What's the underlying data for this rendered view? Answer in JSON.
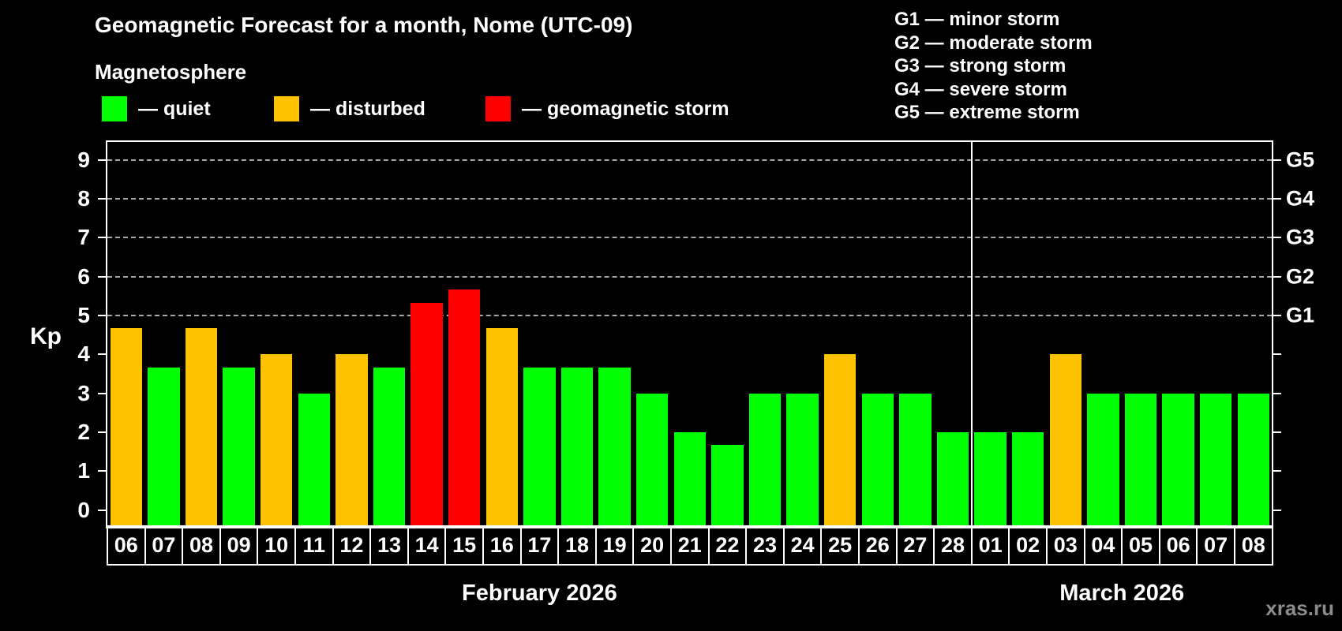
{
  "header": {
    "title": "Geomagnetic Forecast for a month, Nome (UTC-09)",
    "subtitle": "Magnetosphere",
    "legend": [
      {
        "key": "quiet",
        "label": "— quiet",
        "color": "#00ff00"
      },
      {
        "key": "disturbed",
        "label": "— disturbed",
        "color": "#ffc200"
      },
      {
        "key": "storm",
        "label": "— geomagnetic storm",
        "color": "#ff0000"
      }
    ],
    "g_scale_legend": [
      "G1 — minor storm",
      "G2 — moderate storm",
      "G3 — strong storm",
      "G4 — severe storm",
      "G5 — extreme storm"
    ]
  },
  "watermark": "xras.ru",
  "chart_data": {
    "type": "bar",
    "title": "Geomagnetic Forecast for a month, Nome (UTC-09)",
    "ylabel": "Kp",
    "ylim": [
      0,
      9.5
    ],
    "y_ticks": [
      0,
      1,
      2,
      3,
      4,
      5,
      6,
      7,
      8,
      9
    ],
    "grid": "dashed horizontal lines at storm levels only",
    "grid_kp_levels": [
      5,
      6,
      7,
      8,
      9
    ],
    "right_axis_labels": [
      {
        "label": "G1",
        "kp": 5
      },
      {
        "label": "G2",
        "kp": 6
      },
      {
        "label": "G3",
        "kp": 7
      },
      {
        "label": "G4",
        "kp": 8
      },
      {
        "label": "G5",
        "kp": 9
      }
    ],
    "status_colors": {
      "quiet": "#00ff00",
      "disturbed": "#ffc200",
      "storm": "#ff0000"
    },
    "months": [
      {
        "label": "February 2026",
        "bars": [
          {
            "day": "06",
            "kp": 4.67,
            "status": "disturbed"
          },
          {
            "day": "07",
            "kp": 3.67,
            "status": "quiet"
          },
          {
            "day": "08",
            "kp": 4.67,
            "status": "disturbed"
          },
          {
            "day": "09",
            "kp": 3.67,
            "status": "quiet"
          },
          {
            "day": "10",
            "kp": 4.0,
            "status": "disturbed"
          },
          {
            "day": "11",
            "kp": 3.0,
            "status": "quiet"
          },
          {
            "day": "12",
            "kp": 4.0,
            "status": "disturbed"
          },
          {
            "day": "13",
            "kp": 3.67,
            "status": "quiet"
          },
          {
            "day": "14",
            "kp": 5.33,
            "status": "storm"
          },
          {
            "day": "15",
            "kp": 5.67,
            "status": "storm"
          },
          {
            "day": "16",
            "kp": 4.67,
            "status": "disturbed"
          },
          {
            "day": "17",
            "kp": 3.67,
            "status": "quiet"
          },
          {
            "day": "18",
            "kp": 3.67,
            "status": "quiet"
          },
          {
            "day": "19",
            "kp": 3.67,
            "status": "quiet"
          },
          {
            "day": "20",
            "kp": 3.0,
            "status": "quiet"
          },
          {
            "day": "21",
            "kp": 2.0,
            "status": "quiet"
          },
          {
            "day": "22",
            "kp": 1.67,
            "status": "quiet"
          },
          {
            "day": "23",
            "kp": 3.0,
            "status": "quiet"
          },
          {
            "day": "24",
            "kp": 3.0,
            "status": "quiet"
          },
          {
            "day": "25",
            "kp": 4.0,
            "status": "disturbed"
          },
          {
            "day": "26",
            "kp": 3.0,
            "status": "quiet"
          },
          {
            "day": "27",
            "kp": 3.0,
            "status": "quiet"
          },
          {
            "day": "28",
            "kp": 2.0,
            "status": "quiet"
          }
        ]
      },
      {
        "label": "March 2026",
        "bars": [
          {
            "day": "01",
            "kp": 2.0,
            "status": "quiet"
          },
          {
            "day": "02",
            "kp": 2.0,
            "status": "quiet"
          },
          {
            "day": "03",
            "kp": 4.0,
            "status": "disturbed"
          },
          {
            "day": "04",
            "kp": 3.0,
            "status": "quiet"
          },
          {
            "day": "05",
            "kp": 3.0,
            "status": "quiet"
          },
          {
            "day": "06",
            "kp": 3.0,
            "status": "quiet"
          },
          {
            "day": "07",
            "kp": 3.0,
            "status": "quiet"
          },
          {
            "day": "08",
            "kp": 3.0,
            "status": "quiet"
          }
        ]
      }
    ]
  }
}
